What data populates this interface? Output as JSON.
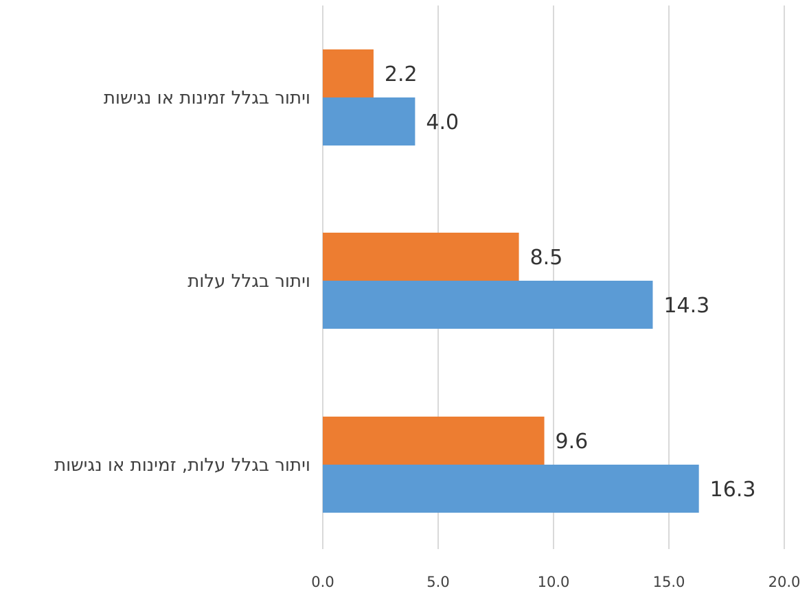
{
  "chart_data": {
    "type": "bar",
    "orientation": "horizontal",
    "categories": [
      "ויתור בגלל זמינות או נגישות",
      "ויתור בגלל עלות",
      "ויתור בגלל עלות, זמינות או נגישות"
    ],
    "series": [
      {
        "color": "#ED7D31",
        "values": [
          2.2,
          8.5,
          9.6
        ],
        "labels": [
          "2.2",
          "8.5",
          "9.6"
        ]
      },
      {
        "color": "#5B9BD5",
        "values": [
          4.0,
          14.3,
          16.3
        ],
        "labels": [
          "4.0",
          "14.3",
          "16.3"
        ]
      }
    ],
    "xlim": [
      0,
      20
    ],
    "xticks": [
      "0.0",
      "5.0",
      "10.0",
      "15.0",
      "20.0"
    ],
    "grid": true,
    "legend": "none"
  }
}
